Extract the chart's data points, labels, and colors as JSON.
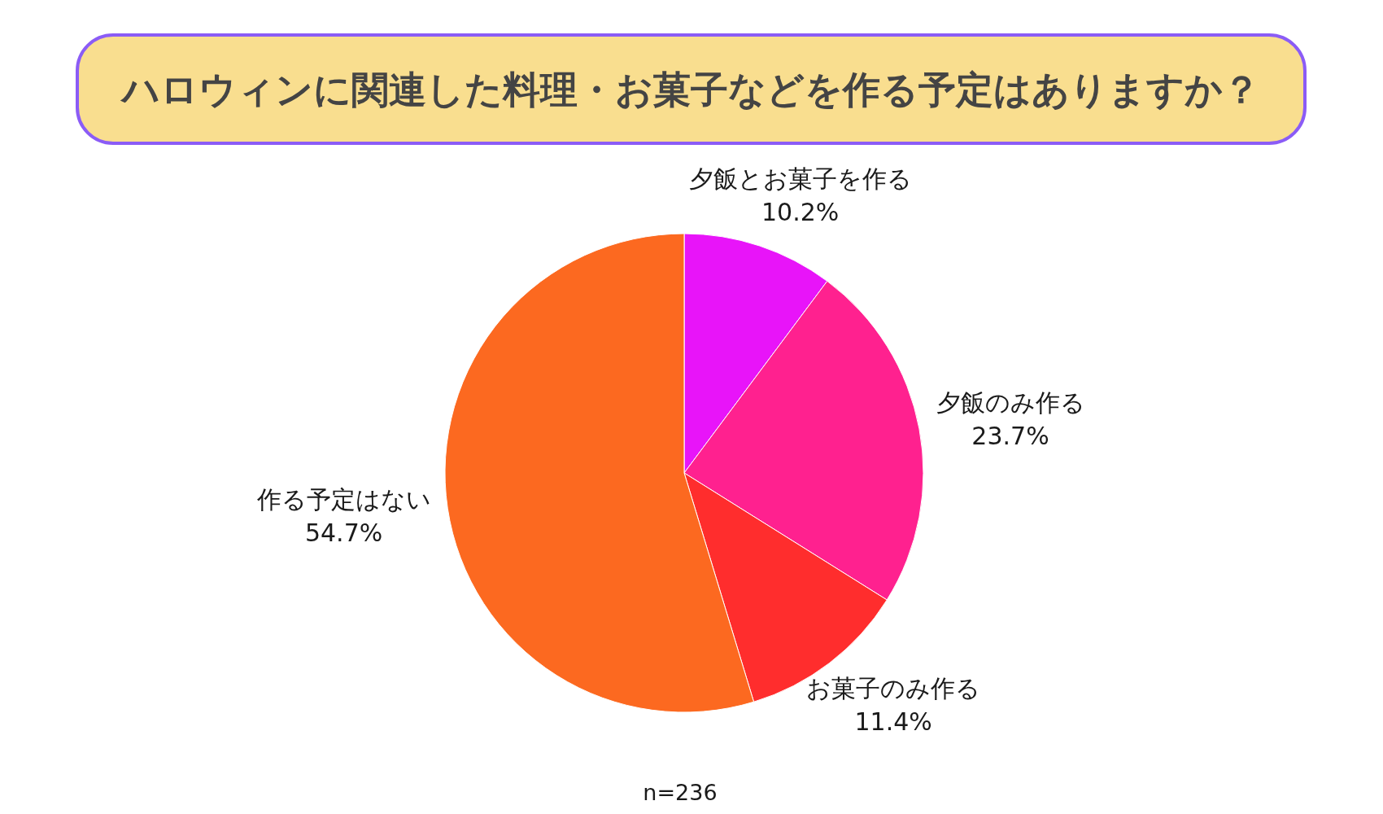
{
  "chart_data": {
    "type": "pie",
    "title": "ハロウィンに関連した料理・お菓子などを作る予定はありますか？",
    "categories": [
      "夕飯とお菓子を作る",
      "夕飯のみ作る",
      "お菓子のみ作る",
      "作る予定はない"
    ],
    "values": [
      10.2,
      23.7,
      11.4,
      54.7
    ],
    "colors": [
      "#e814f9",
      "#ff218f",
      "#ff2d2d",
      "#fc6920"
    ],
    "value_labels": [
      "10.2%",
      "23.7%",
      "11.4%",
      "54.7%"
    ],
    "annotations": [
      "n=236"
    ]
  }
}
